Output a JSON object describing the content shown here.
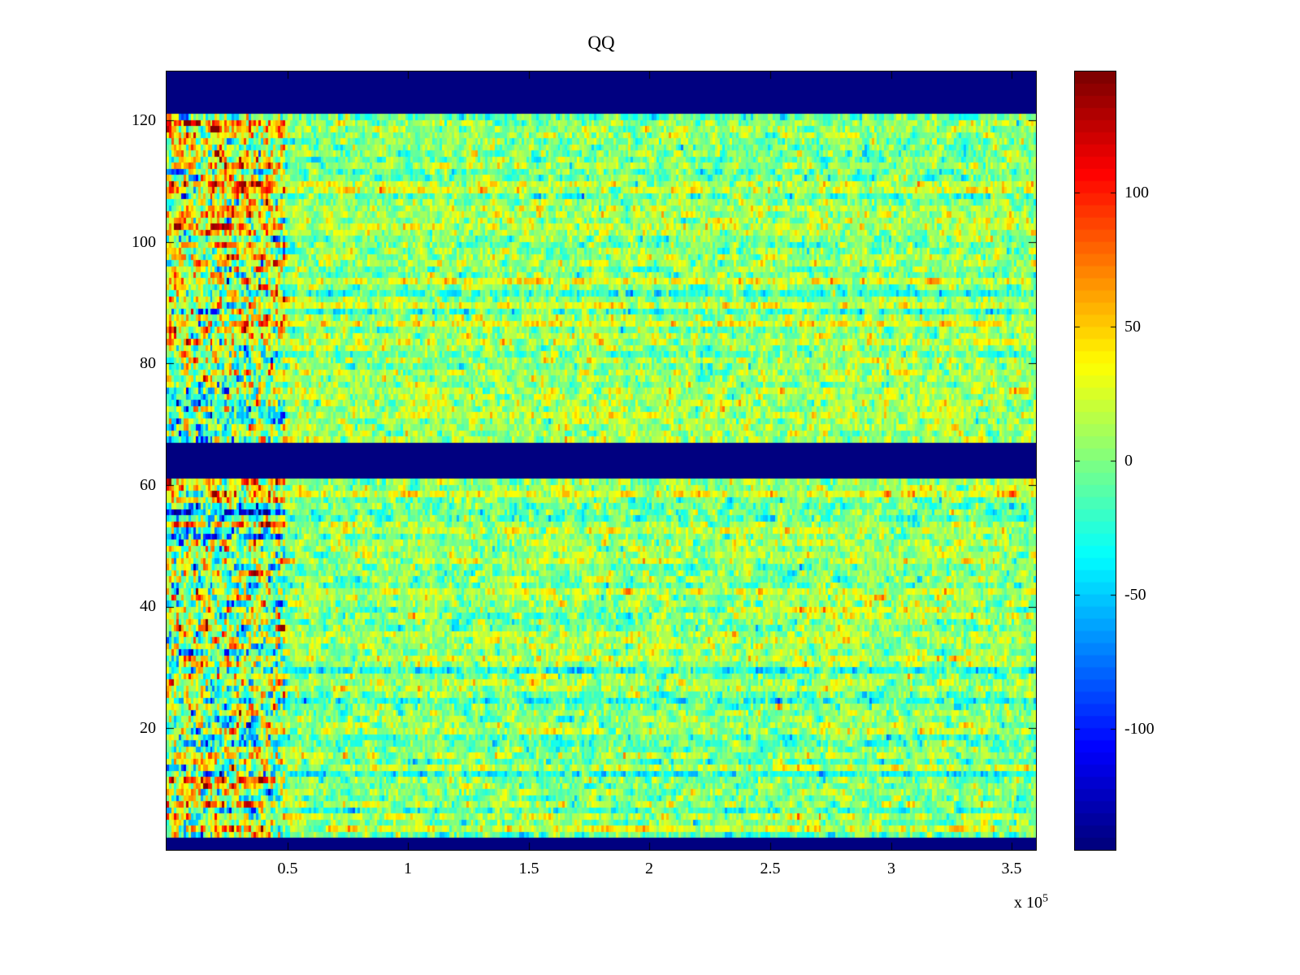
{
  "figure": {
    "background": "#ffffff",
    "axis_color": "#000000"
  },
  "chart_data": {
    "type": "heatmap",
    "title": "QQ",
    "xlabel": "",
    "ylabel": "",
    "x_range": [
      0,
      360000
    ],
    "x_ticks": [
      50000,
      100000,
      150000,
      200000,
      250000,
      300000,
      350000
    ],
    "x_tick_labels": [
      "0.5",
      "1",
      "1.5",
      "2",
      "2.5",
      "3",
      "3.5"
    ],
    "x_scale_base": "x 10",
    "x_scale_exponent": "5",
    "y_range": [
      0,
      128
    ],
    "y_ticks": [
      20,
      40,
      60,
      80,
      100,
      120
    ],
    "colormap": "jet",
    "clim": [
      -145,
      145
    ],
    "colorbar_tick_labels": [
      "100",
      "50",
      "0",
      "-50",
      "-100"
    ],
    "colorbar_tick_values": [
      100,
      50,
      0,
      -50,
      -100
    ],
    "grid": false,
    "legend": null,
    "solid_bands_rows": [
      [
        122,
        128
      ],
      [
        62,
        67
      ],
      [
        1,
        2
      ]
    ],
    "band_value": -145,
    "description": "Noisy signal heatmap (values mostly near 0, green) with solid dark-blue horizontal bands at rows 1-2, 62-67 and 122-128. The left region (x < 0.5e5) shows higher variance with warm orange/red and cool cyan/blue horizontal streaks, notably at rows 4-20, 52-61 and 100-121. Faint cyan row streaks run across the full width (e.g. near rows 19, 38, 96) and a warm streak appears near row 40 for x between 2.3e5 and 3.2e5.",
    "render_spec": {
      "seed": 20240531,
      "rows": 128,
      "cols": 360,
      "mean": 6,
      "std": 20,
      "ar": 0.45,
      "row_bias_std": 8,
      "cyan_row_chance": 0.07,
      "cyan_row_bias": -26,
      "warm_row_chance": 0.05,
      "warm_row_bias": 16,
      "left_cols": 49,
      "left_extra_std": 26,
      "left_base_bias": 6,
      "left_groups": [
        {
          "rows": [
            4,
            20
          ],
          "bias": 26,
          "spread": 42
        },
        {
          "rows": [
            33,
            44
          ],
          "bias": 6,
          "spread": 22
        },
        {
          "rows": [
            52,
            61
          ],
          "bias": 8,
          "spread": 55
        },
        {
          "rows": [
            68,
            76
          ],
          "bias": -16,
          "spread": 18
        },
        {
          "rows": [
            86,
            99
          ],
          "bias": 14,
          "spread": 24
        },
        {
          "rows": [
            100,
            121
          ],
          "bias": 22,
          "spread": 26
        }
      ],
      "row_overrides": [
        {
          "row": 96,
          "bias": -20
        },
        {
          "row": 38,
          "bias": -16
        },
        {
          "row": 19,
          "bias": -18
        },
        {
          "row": 87,
          "bias": 12
        },
        {
          "row": 23,
          "bias": 14
        }
      ],
      "segment_overrides": [
        {
          "row": 40,
          "cols": [
            232,
            322
          ],
          "bias": 38
        },
        {
          "row": 39,
          "cols": [
            118,
            200
          ],
          "bias": -26
        },
        {
          "row": 12,
          "cols": [
            0,
            48
          ],
          "bias": 40
        },
        {
          "row": 8,
          "cols": [
            0,
            48
          ],
          "bias": 35
        },
        {
          "row": 16,
          "cols": [
            0,
            48
          ],
          "bias": -35
        },
        {
          "row": 56,
          "cols": [
            0,
            46
          ],
          "bias": -55
        },
        {
          "row": 57,
          "cols": [
            0,
            46
          ],
          "bias": -45
        },
        {
          "row": 60,
          "cols": [
            0,
            46
          ],
          "bias": 35
        },
        {
          "row": 110,
          "cols": [
            0,
            48
          ],
          "bias": 30
        },
        {
          "row": 113,
          "cols": [
            0,
            48
          ],
          "bias": 25
        }
      ]
    }
  }
}
